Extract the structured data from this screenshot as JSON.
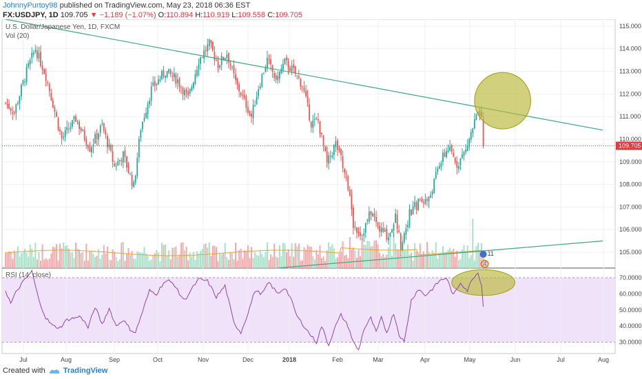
{
  "header": {
    "user": "JohnnyPurtoy98",
    "published": "published on TradingView.com, May 23, 2018 06:36 EST",
    "symbol": "FX:USDJPY, 1D",
    "last": "109.705",
    "change": "▼ −1.189 (−1.07%)",
    "open_label": "O:",
    "open": "110.894",
    "high_label": "H:",
    "high": "110.919",
    "low_label": "L:",
    "low": "109.558",
    "close_label": "C:",
    "close": "109.705"
  },
  "panes": {
    "main_title": "U.S. Dollar/Japanese Yen, 1D, FXCM",
    "vol_label": "Vol (20)",
    "rsi_label": "RSI (14, close)"
  },
  "footer": {
    "created_with": "Created with",
    "brand": "TradingView"
  },
  "colors": {
    "up": "#26a69a",
    "down": "#ef5350",
    "vol_up": "#a8e0c8",
    "vol_down": "#f6a9ab",
    "trend": "#3aa77e",
    "rsi": "#8e44ad",
    "rsi_band": "#f0e2f8",
    "circle_fill": "#b8b838",
    "circle_stroke": "#9c9a1a",
    "ma": "#f0a030",
    "price_line": "#e0393e",
    "price_tag_bg": "#e0393e"
  },
  "chart_data": [
    {
      "type": "candlestick",
      "title": "U.S. Dollar/Japanese Yen, 1D, FXCM",
      "x_ticks": [
        "Jul",
        "Aug",
        "Sep",
        "Oct",
        "Nov",
        "Dec",
        "2018",
        "Feb",
        "Mar",
        "Apr",
        "May",
        "Jun",
        "Jul",
        "Aug"
      ],
      "y_ticks": [
        "115.000",
        "114.000",
        "113.000",
        "112.000",
        "111.000",
        "110.000",
        "109.000",
        "108.000",
        "107.000",
        "106.000",
        "105.000"
      ],
      "ylim": [
        104.3,
        115.3
      ],
      "current_price_label": "109.705",
      "current_price": 109.705,
      "anchors": [
        [
          0,
          111.6
        ],
        [
          5,
          111.2
        ],
        [
          12,
          113.0
        ],
        [
          17,
          114.0
        ],
        [
          23,
          112.8
        ],
        [
          32,
          110.0
        ],
        [
          40,
          110.9
        ],
        [
          48,
          109.6
        ],
        [
          55,
          110.6
        ],
        [
          62,
          108.8
        ],
        [
          67,
          109.3
        ],
        [
          73,
          107.9
        ],
        [
          77,
          110.5
        ],
        [
          83,
          112.2
        ],
        [
          91,
          113.0
        ],
        [
          98,
          112.6
        ],
        [
          104,
          111.8
        ],
        [
          110,
          113.5
        ],
        [
          116,
          114.2
        ],
        [
          121,
          113.3
        ],
        [
          126,
          113.8
        ],
        [
          131,
          112.5
        ],
        [
          136,
          111.7
        ],
        [
          140,
          111.0
        ],
        [
          144,
          112.3
        ],
        [
          149,
          113.5
        ],
        [
          154,
          112.6
        ],
        [
          159,
          113.4
        ],
        [
          164,
          113.0
        ],
        [
          169,
          112.4
        ],
        [
          174,
          110.7
        ],
        [
          178,
          110.8
        ],
        [
          183,
          108.9
        ],
        [
          188,
          109.8
        ],
        [
          194,
          108.5
        ],
        [
          198,
          106.2
        ],
        [
          203,
          105.8
        ],
        [
          208,
          106.8
        ],
        [
          213,
          106.0
        ],
        [
          218,
          105.7
        ],
        [
          222,
          106.6
        ],
        [
          225,
          105.3
        ],
        [
          230,
          106.7
        ],
        [
          236,
          107.3
        ],
        [
          241,
          107.3
        ],
        [
          247,
          108.9
        ],
        [
          252,
          109.6
        ],
        [
          257,
          108.9
        ],
        [
          262,
          109.5
        ],
        [
          268,
          111.0
        ],
        [
          271,
          111.0
        ],
        [
          272,
          109.705
        ]
      ],
      "trend_lines": [
        {
          "name": "resistance",
          "from": [
            0,
            115.3
          ],
          "to": [
            340,
            110.4
          ]
        },
        {
          "name": "support",
          "from": [
            155,
            104.3
          ],
          "to": [
            340,
            105.5
          ]
        }
      ],
      "highlight_circle": {
        "center": [
          283,
          111.7
        ],
        "radius_days": 16,
        "radius_price": 1.25
      },
      "labels": [
        "11",
        "4"
      ]
    },
    {
      "type": "bar",
      "title": "Vol (20)",
      "series": [
        {
          "name": "volume"
        },
        {
          "name": "MA 20"
        }
      ]
    },
    {
      "type": "line",
      "title": "RSI (14, close)",
      "y_ticks": [
        "70.0000",
        "60.0000",
        "50.0000",
        "40.0000",
        "30.0000"
      ],
      "ylim": [
        23,
        76
      ],
      "bands": [
        30,
        70
      ],
      "anchors": [
        [
          0,
          62
        ],
        [
          3,
          54
        ],
        [
          6,
          61
        ],
        [
          9,
          66
        ],
        [
          12,
          70
        ],
        [
          15,
          74
        ],
        [
          19,
          56
        ],
        [
          23,
          45
        ],
        [
          27,
          40
        ],
        [
          31,
          39
        ],
        [
          35,
          44
        ],
        [
          39,
          45
        ],
        [
          43,
          46
        ],
        [
          47,
          39
        ],
        [
          51,
          52
        ],
        [
          55,
          41
        ],
        [
          59,
          51
        ],
        [
          63,
          40
        ],
        [
          67,
          44
        ],
        [
          71,
          38
        ],
        [
          74,
          36
        ],
        [
          78,
          49
        ],
        [
          82,
          62
        ],
        [
          86,
          60
        ],
        [
          90,
          67
        ],
        [
          93,
          68
        ],
        [
          96,
          66
        ],
        [
          99,
          60
        ],
        [
          102,
          56
        ],
        [
          106,
          63
        ],
        [
          110,
          69
        ],
        [
          115,
          68
        ],
        [
          120,
          58
        ],
        [
          125,
          65
        ],
        [
          130,
          42
        ],
        [
          134,
          36
        ],
        [
          138,
          48
        ],
        [
          142,
          62
        ],
        [
          146,
          60
        ],
        [
          150,
          67
        ],
        [
          155,
          60
        ],
        [
          159,
          64
        ],
        [
          162,
          58
        ],
        [
          166,
          46
        ],
        [
          170,
          40
        ],
        [
          174,
          34
        ],
        [
          177,
          30
        ],
        [
          180,
          40
        ],
        [
          184,
          28
        ],
        [
          187,
          38
        ],
        [
          191,
          47
        ],
        [
          195,
          40
        ],
        [
          198,
          30
        ],
        [
          201,
          25
        ],
        [
          204,
          38
        ],
        [
          208,
          45
        ],
        [
          211,
          36
        ],
        [
          214,
          45
        ],
        [
          217,
          36
        ],
        [
          221,
          48
        ],
        [
          224,
          35
        ],
        [
          227,
          30
        ],
        [
          231,
          56
        ],
        [
          235,
          63
        ],
        [
          239,
          59
        ],
        [
          243,
          63
        ],
        [
          247,
          68
        ],
        [
          251,
          70
        ],
        [
          255,
          59
        ],
        [
          259,
          67
        ],
        [
          263,
          62
        ],
        [
          266,
          70
        ],
        [
          269,
          73
        ],
        [
          271,
          66
        ],
        [
          272,
          52
        ]
      ],
      "highlight_ellipse": {
        "center": [
          272,
          67
        ],
        "radius_days": 18,
        "radius_rsi": 8
      }
    }
  ]
}
